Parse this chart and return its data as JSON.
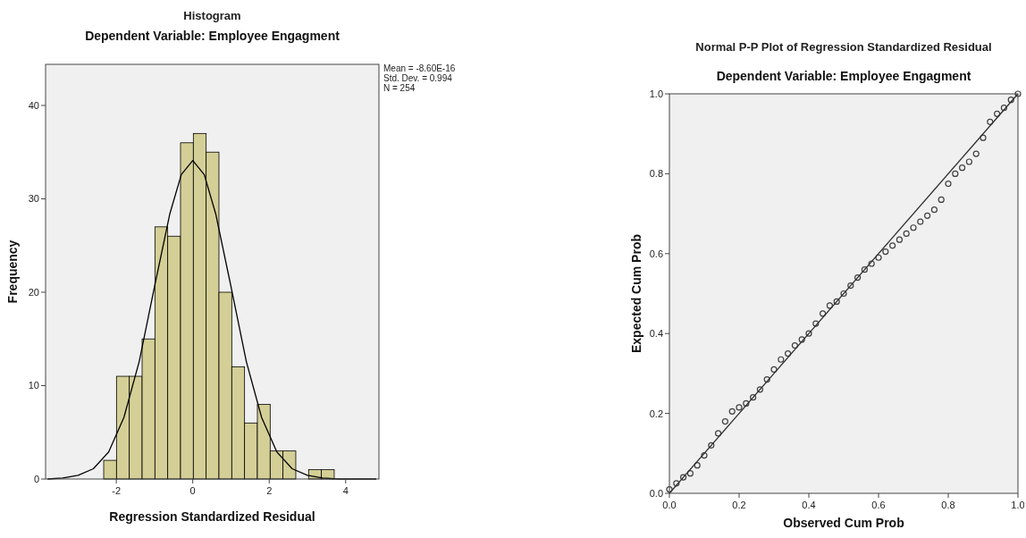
{
  "chart_data": [
    {
      "type": "histogram",
      "title": "Histogram",
      "subtitle": "Dependent Variable: Employee Engagment",
      "xlabel": "Regression Standardized Residual",
      "ylabel": "Frequency",
      "bins": [
        -2.33,
        -1.995,
        -1.66,
        -1.325,
        -0.99,
        -0.655,
        -0.32,
        0.015,
        0.35,
        0.685,
        1.02,
        1.355,
        1.69,
        2.025,
        2.36,
        2.695,
        3.03,
        3.365,
        3.7
      ],
      "values": [
        2,
        11,
        11,
        15,
        27,
        26,
        36,
        37,
        35,
        20,
        12,
        6,
        8,
        3,
        3,
        0,
        1,
        1
      ],
      "color": "#d4cf96",
      "series": [
        {
          "type": "line",
          "color": "#000000",
          "x": [
            -3.8,
            -3.4,
            -3.0,
            -2.6,
            -2.2,
            -1.8,
            -1.4,
            -1.0,
            -0.6,
            -0.3,
            0,
            0.3,
            0.6,
            1.0,
            1.4,
            1.8,
            2.2,
            2.6,
            3.0,
            3.4,
            3.8,
            4.2,
            4.8
          ],
          "values": [
            0,
            0.1,
            0.4,
            1.1,
            2.9,
            6.6,
            12.6,
            20.6,
            28.4,
            32.6,
            34.1,
            32.6,
            28.4,
            20.6,
            12.6,
            6.6,
            2.9,
            1.1,
            0.4,
            0.1,
            0,
            0,
            0
          ]
        }
      ],
      "xlim": [
        -3.85,
        4.87
      ],
      "xticks": [
        -2,
        0,
        2,
        4
      ],
      "ylim": [
        0,
        44.4
      ],
      "yticks": [
        0,
        10,
        20,
        30,
        40
      ],
      "grid": false,
      "annotations": [
        "Mean = -8.60E-16",
        "Std. Dev. = 0.994",
        "N = 254"
      ]
    },
    {
      "type": "scatter",
      "title": "Normal P-P Plot of Regression Standardized Residual",
      "subtitle": "Dependent Variable: Employee Engagment",
      "xlabel": "Observed Cum Prob",
      "ylabel": "Expected Cum Prob",
      "grid": false,
      "series": [
        {
          "type": "scatter",
          "marker": "circle",
          "color": "#404040",
          "x": [
            0,
            0.02,
            0.04,
            0.06,
            0.08,
            0.1,
            0.12,
            0.14,
            0.16,
            0.18,
            0.2,
            0.22,
            0.24,
            0.26,
            0.28,
            0.3,
            0.32,
            0.34,
            0.36,
            0.38,
            0.4,
            0.42,
            0.44,
            0.46,
            0.48,
            0.5,
            0.52,
            0.54,
            0.56,
            0.58,
            0.6,
            0.62,
            0.64,
            0.66,
            0.68,
            0.7,
            0.72,
            0.74,
            0.76,
            0.78,
            0.8,
            0.82,
            0.84,
            0.86,
            0.88,
            0.9,
            0.92,
            0.94,
            0.96,
            0.98,
            1
          ],
          "values": [
            0.01,
            0.025,
            0.04,
            0.05,
            0.07,
            0.095,
            0.12,
            0.15,
            0.18,
            0.205,
            0.215,
            0.225,
            0.24,
            0.26,
            0.285,
            0.31,
            0.335,
            0.35,
            0.37,
            0.385,
            0.4,
            0.425,
            0.45,
            0.47,
            0.48,
            0.5,
            0.52,
            0.54,
            0.56,
            0.575,
            0.59,
            0.605,
            0.62,
            0.635,
            0.65,
            0.665,
            0.68,
            0.695,
            0.71,
            0.735,
            0.775,
            0.8,
            0.815,
            0.83,
            0.85,
            0.89,
            0.93,
            0.95,
            0.965,
            0.985,
            1
          ]
        },
        {
          "type": "line",
          "marker": "none",
          "color": "#303030",
          "x": [
            0,
            1
          ],
          "values": [
            0,
            1
          ]
        }
      ],
      "xlim": [
        0,
        1
      ],
      "xticks": [
        {
          "value": 0,
          "label": "0.0"
        },
        0.2,
        0.4,
        0.6,
        0.8,
        {
          "value": 1,
          "label": "1.0"
        }
      ],
      "ylim": [
        0,
        1
      ],
      "yticks": [
        {
          "value": 0,
          "label": "0.0"
        },
        0.2,
        0.4,
        0.6,
        0.8,
        {
          "value": 1,
          "label": "1.0"
        }
      ]
    }
  ]
}
